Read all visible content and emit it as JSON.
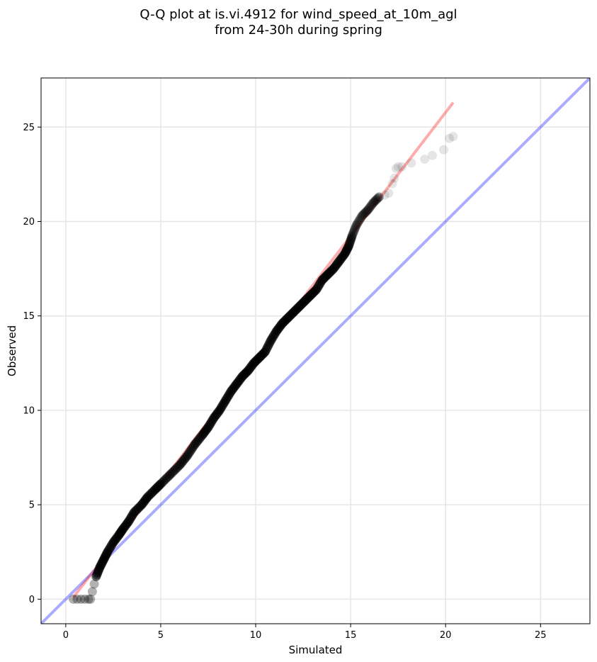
{
  "chart_data": {
    "type": "scatter",
    "title_lines": [
      "Q-Q plot at is.vi.4912 for wind_speed_at_10m_agl",
      "from 24-30h during spring"
    ],
    "xlabel": "Simulated",
    "ylabel": "Observed",
    "xlim": [
      -1.3,
      27.6
    ],
    "ylim": [
      -1.3,
      27.6
    ],
    "xticks": [
      0,
      5,
      10,
      15,
      20,
      25
    ],
    "yticks": [
      0,
      5,
      10,
      15,
      20,
      25
    ],
    "grid": true,
    "colors": {
      "points": "#000000",
      "fit_line": "#ff0000",
      "identity_line": "#0000ff",
      "grid": "#e6e6e6"
    },
    "identity_line": {
      "x": [
        -1.3,
        27.6
      ],
      "y": [
        -1.3,
        27.6
      ]
    },
    "fit_line": {
      "x": [
        0.4,
        20.4
      ],
      "y": [
        0.1,
        26.3
      ]
    },
    "points": {
      "x": [
        0.4,
        0.6,
        0.8,
        1.0,
        1.2,
        1.3,
        1.4,
        1.5,
        1.6,
        1.8,
        2.0,
        2.2,
        2.5,
        2.8,
        3.0,
        3.3,
        3.6,
        4.0,
        4.3,
        4.7,
        5.0,
        5.5,
        6.0,
        6.4,
        6.8,
        7.2,
        7.5,
        7.8,
        8.1,
        8.4,
        8.7,
        9.0,
        9.3,
        9.6,
        9.9,
        10.2,
        10.5,
        10.8,
        11.1,
        11.4,
        11.7,
        12.0,
        12.3,
        12.6,
        12.9,
        13.2,
        13.5,
        13.8,
        14.1,
        14.4,
        14.7,
        14.9,
        15.1,
        15.3,
        15.6,
        15.9,
        16.2,
        16.5,
        16.8,
        17.0,
        17.2,
        17.3,
        17.4,
        17.5,
        17.7,
        18.2,
        18.9,
        19.3,
        19.9,
        20.2,
        20.4
      ],
      "y": [
        0.0,
        0.0,
        0.0,
        0.0,
        0.0,
        0.0,
        0.4,
        0.8,
        1.2,
        1.7,
        2.1,
        2.5,
        3.0,
        3.4,
        3.7,
        4.1,
        4.6,
        5.0,
        5.4,
        5.8,
        6.1,
        6.6,
        7.1,
        7.6,
        8.2,
        8.7,
        9.1,
        9.6,
        10.0,
        10.5,
        11.0,
        11.4,
        11.8,
        12.1,
        12.5,
        12.8,
        13.1,
        13.7,
        14.2,
        14.6,
        14.9,
        15.2,
        15.5,
        15.8,
        16.1,
        16.4,
        16.9,
        17.2,
        17.5,
        17.9,
        18.3,
        18.7,
        19.3,
        19.8,
        20.3,
        20.6,
        21.0,
        21.3,
        21.4,
        21.5,
        22.0,
        22.3,
        22.8,
        22.9,
        22.9,
        23.1,
        23.3,
        23.5,
        23.8,
        24.4,
        24.5
      ]
    }
  }
}
